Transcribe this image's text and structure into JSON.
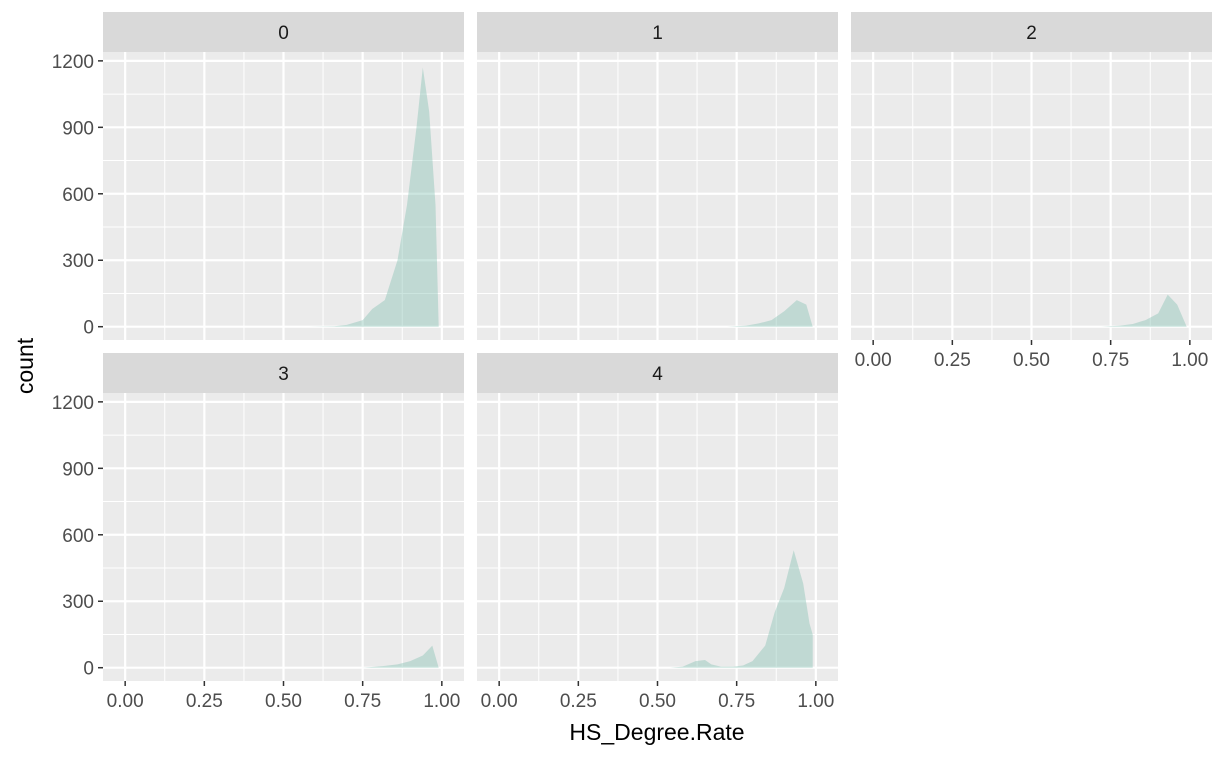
{
  "chart_data": {
    "type": "area",
    "facet_variable": "",
    "xlabel": "HS_Degree.Rate",
    "ylabel": "count",
    "xlim": [
      -0.07,
      1.07
    ],
    "ylim": [
      -60,
      1240
    ],
    "x_ticks": [
      0,
      0.25,
      0.5,
      0.75,
      1
    ],
    "x_tick_labels": [
      "0.00",
      "0.25",
      "0.50",
      "0.75",
      "1.00"
    ],
    "y_ticks": [
      0,
      300,
      600,
      900,
      1200
    ],
    "y_tick_labels": [
      "0",
      "300",
      "600",
      "900",
      "1200"
    ],
    "grid": true,
    "colors": {
      "fill": "#7FBFAF",
      "fill_opacity": 0.4,
      "panel_background": "#EBEBEB",
      "strip_background": "#D9D9D9",
      "grid": "#FFFFFF"
    },
    "panels": [
      {
        "label": "0",
        "x": [
          0.58,
          0.66,
          0.7,
          0.75,
          0.78,
          0.82,
          0.86,
          0.89,
          0.92,
          0.94,
          0.96,
          0.98,
          0.99
        ],
        "y": [
          0,
          2,
          8,
          30,
          80,
          120,
          300,
          550,
          900,
          1170,
          970,
          550,
          0
        ]
      },
      {
        "label": "1",
        "x": [
          0.72,
          0.78,
          0.82,
          0.86,
          0.9,
          0.94,
          0.97,
          0.99
        ],
        "y": [
          0,
          5,
          15,
          30,
          70,
          120,
          100,
          0
        ]
      },
      {
        "label": "2",
        "x": [
          0.72,
          0.78,
          0.82,
          0.86,
          0.9,
          0.93,
          0.96,
          0.99
        ],
        "y": [
          0,
          5,
          12,
          30,
          60,
          145,
          100,
          0
        ]
      },
      {
        "label": "3",
        "x": [
          0.75,
          0.82,
          0.86,
          0.9,
          0.94,
          0.97,
          0.99
        ],
        "y": [
          0,
          8,
          15,
          30,
          55,
          100,
          0
        ]
      },
      {
        "label": "4",
        "x": [
          0.54,
          0.58,
          0.62,
          0.65,
          0.67,
          0.7,
          0.74,
          0.77,
          0.8,
          0.84,
          0.87,
          0.9,
          0.93,
          0.96,
          0.98,
          0.99
        ],
        "y": [
          0,
          5,
          30,
          35,
          15,
          5,
          5,
          10,
          30,
          100,
          250,
          360,
          530,
          380,
          200,
          150
        ]
      }
    ]
  }
}
